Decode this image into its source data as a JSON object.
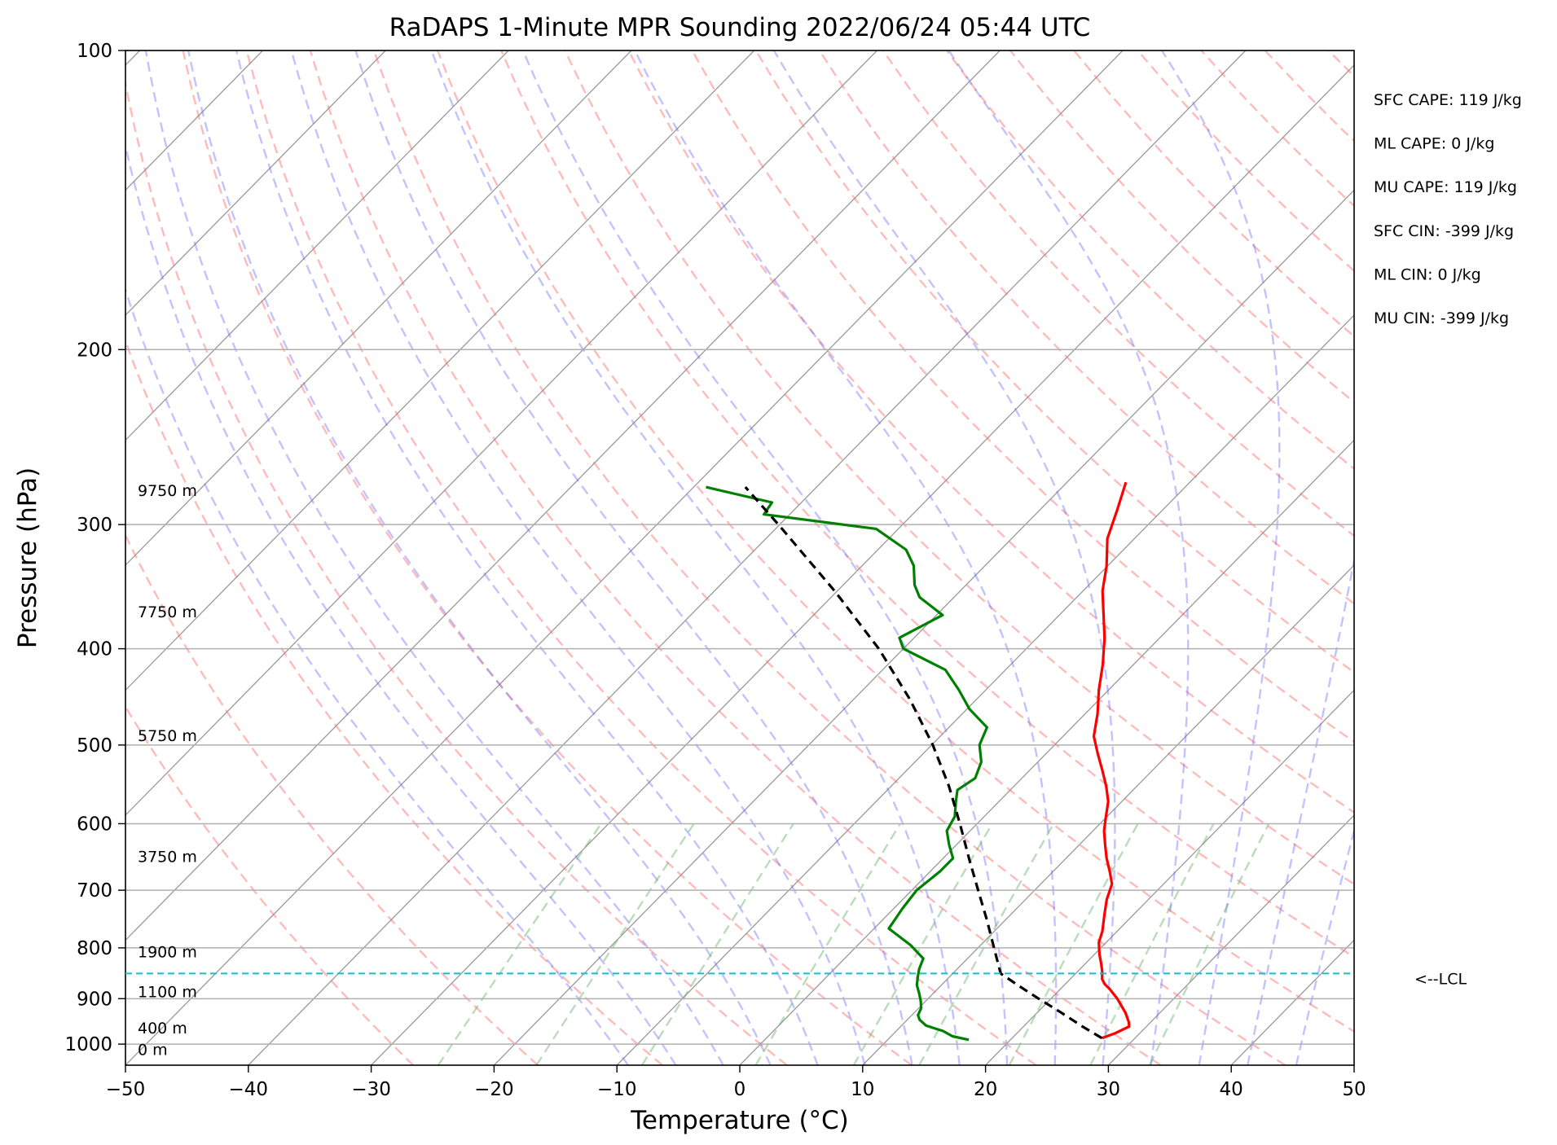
{
  "chart_data": {
    "type": "line",
    "title": "RaDAPS 1-Minute MPR Sounding 2022/06/24 05:44 UTC",
    "xlabel": "Temperature (°C)",
    "ylabel": "Pressure (hPa)",
    "xlim": [
      -50,
      50
    ],
    "ylim": [
      1050,
      100
    ],
    "y_scale": "log",
    "skew_t": true,
    "grid": true,
    "x_ticks": [
      -50,
      -40,
      -30,
      -20,
      -10,
      0,
      10,
      20,
      30,
      40,
      50
    ],
    "x_tick_labels": [
      "−50",
      "−40",
      "−30",
      "−20",
      "−10",
      "0",
      "10",
      "20",
      "30",
      "40",
      "50"
    ],
    "y_ticks": [
      100,
      200,
      300,
      400,
      500,
      600,
      700,
      800,
      900,
      1000
    ],
    "y_tick_labels": [
      "100",
      "200",
      "300",
      "400",
      "500",
      "600",
      "700",
      "800",
      "900",
      "1000"
    ],
    "series": [
      {
        "role": "temperature",
        "color": "#ff0000",
        "style": "solid",
        "points": [
          [
            986,
            27.3
          ],
          [
            975,
            28.0
          ],
          [
            960,
            28.6
          ],
          [
            950,
            28.2
          ],
          [
            930,
            27.2
          ],
          [
            900,
            25.4
          ],
          [
            880,
            24.0
          ],
          [
            870,
            23.2
          ],
          [
            860,
            22.6
          ],
          [
            845,
            22.0
          ],
          [
            830,
            21.3
          ],
          [
            812,
            20.4
          ],
          [
            790,
            19.4
          ],
          [
            770,
            18.8
          ],
          [
            740,
            17.6
          ],
          [
            715,
            16.6
          ],
          [
            690,
            15.8
          ],
          [
            670,
            14.6
          ],
          [
            650,
            13.3
          ],
          [
            630,
            12.1
          ],
          [
            610,
            10.9
          ],
          [
            590,
            9.9
          ],
          [
            570,
            8.9
          ],
          [
            550,
            7.5
          ],
          [
            530,
            5.9
          ],
          [
            510,
            4.2
          ],
          [
            490,
            2.5
          ],
          [
            465,
            1.0
          ],
          [
            440,
            -0.8
          ],
          [
            415,
            -2.5
          ],
          [
            390,
            -4.5
          ],
          [
            370,
            -6.4
          ],
          [
            350,
            -8.4
          ],
          [
            330,
            -10.1
          ],
          [
            310,
            -12.2
          ],
          [
            290,
            -13.7
          ],
          [
            272,
            -15.2
          ]
        ]
      },
      {
        "role": "dewpoint",
        "color": "#008000",
        "style": "solid",
        "points": [
          [
            990,
            16.6
          ],
          [
            982,
            15.0
          ],
          [
            970,
            13.8
          ],
          [
            958,
            12.0
          ],
          [
            945,
            11.0
          ],
          [
            935,
            10.5
          ],
          [
            920,
            10.2
          ],
          [
            905,
            9.6
          ],
          [
            890,
            8.9
          ],
          [
            872,
            8.0
          ],
          [
            855,
            7.4
          ],
          [
            840,
            6.9
          ],
          [
            820,
            6.4
          ],
          [
            795,
            4.3
          ],
          [
            765,
            1.2
          ],
          [
            730,
            0.7
          ],
          [
            700,
            0.4
          ],
          [
            670,
            0.8
          ],
          [
            650,
            0.8
          ],
          [
            630,
            -0.6
          ],
          [
            610,
            -1.9
          ],
          [
            590,
            -2.4
          ],
          [
            570,
            -3.5
          ],
          [
            555,
            -4.3
          ],
          [
            540,
            -3.8
          ],
          [
            520,
            -4.6
          ],
          [
            500,
            -6.1
          ],
          [
            480,
            -6.9
          ],
          [
            460,
            -9.8
          ],
          [
            440,
            -12.2
          ],
          [
            420,
            -14.9
          ],
          [
            400,
            -20.0
          ],
          [
            390,
            -21.2
          ],
          [
            370,
            -19.5
          ],
          [
            355,
            -22.8
          ],
          [
            345,
            -24.2
          ],
          [
            330,
            -25.8
          ],
          [
            318,
            -27.7
          ],
          [
            303,
            -31.8
          ],
          [
            293,
            -42.1
          ],
          [
            285,
            -42.4
          ],
          [
            275,
            -49.0
          ]
        ]
      },
      {
        "role": "parcel",
        "color": "#000000",
        "style": "dashed",
        "points": [
          [
            986,
            27.3
          ],
          [
            960,
            24.8
          ],
          [
            930,
            22.0
          ],
          [
            900,
            19.0
          ],
          [
            875,
            16.5
          ],
          [
            849,
            13.9
          ],
          [
            800,
            11.3
          ],
          [
            750,
            8.5
          ],
          [
            700,
            5.4
          ],
          [
            650,
            2.1
          ],
          [
            600,
            -1.4
          ],
          [
            550,
            -5.3
          ],
          [
            500,
            -9.9
          ],
          [
            450,
            -15.4
          ],
          [
            400,
            -22.0
          ],
          [
            350,
            -30.2
          ],
          [
            300,
            -40.1
          ],
          [
            275,
            -45.8
          ]
        ]
      }
    ],
    "height_labels": [
      {
        "text": "9750 m",
        "p": 277
      },
      {
        "text": "7750 m",
        "p": 367
      },
      {
        "text": "5750 m",
        "p": 489
      },
      {
        "text": "3750 m",
        "p": 647
      },
      {
        "text": "1900 m",
        "p": 807
      },
      {
        "text": "1100 m",
        "p": 885
      },
      {
        "text": "400 m",
        "p": 963
      },
      {
        "text": "0 m",
        "p": 1012
      }
    ],
    "lcl": {
      "p": 849,
      "label": "<--LCL",
      "color": "#17becf"
    },
    "indices": [
      "SFC CAPE: 119 J/kg",
      "ML CAPE: 0 J/kg",
      "MU CAPE: 119 J/kg",
      "SFC CIN: -399 J/kg",
      "ML CIN: 0 J/kg",
      "MU CIN: -399 J/kg"
    ],
    "background_lines": {
      "isotherms_color": "#999999",
      "dry_adiabats_color": "#ff6666",
      "moist_adiabats_color": "#6666ff",
      "mixing_ratio_color": "#66b266"
    }
  }
}
